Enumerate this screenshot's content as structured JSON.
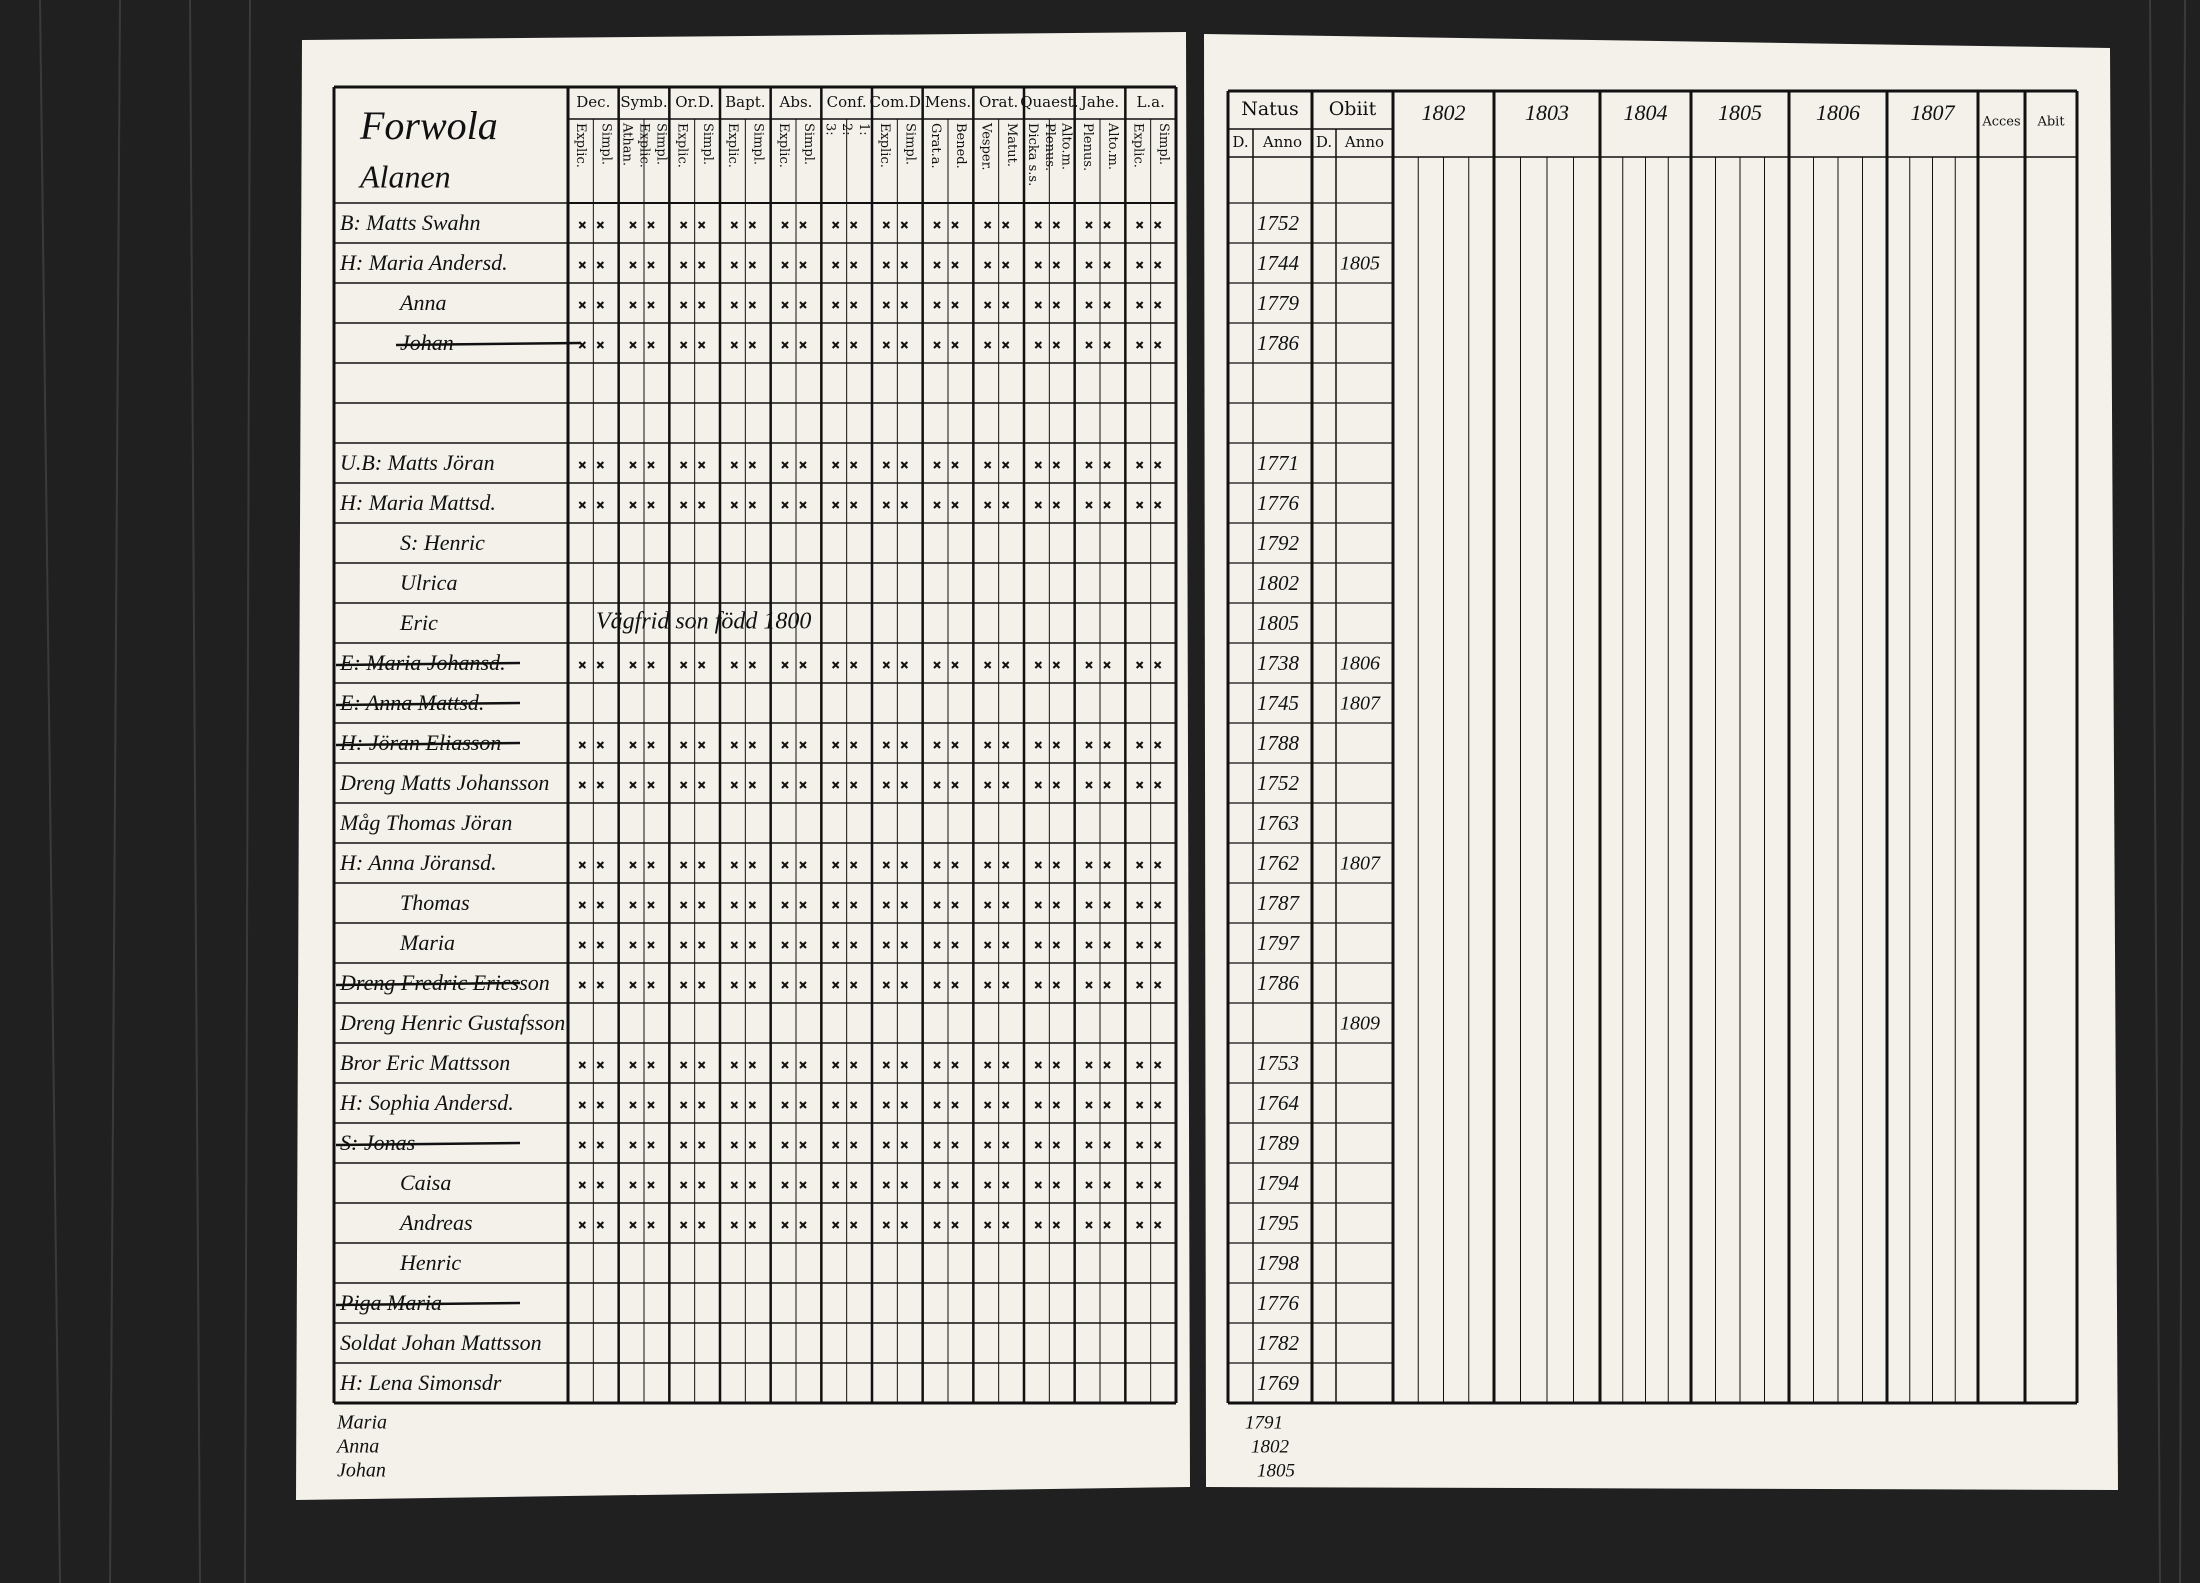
{
  "left_page": {
    "title": "Forwola",
    "subtitle": "Alanen",
    "columns": [
      {
        "label": "Dec.",
        "sub": [
          "Explic.",
          "Simpl."
        ]
      },
      {
        "label": "Symb.",
        "sub": [
          "Athan.",
          "Explic.",
          "Simpl."
        ]
      },
      {
        "label": "Or.D.",
        "sub": [
          "Explic.",
          "Simpl."
        ]
      },
      {
        "label": "Bapt.",
        "sub": [
          "Explic.",
          "Simpl."
        ]
      },
      {
        "label": "Abs.",
        "sub": [
          "Explic.",
          "Simpl."
        ]
      },
      {
        "label": "Conf.",
        "sub": [
          "3:",
          "2:",
          "1:"
        ]
      },
      {
        "label": "Com.D.",
        "sub": [
          "Explic.",
          "Simpl."
        ]
      },
      {
        "label": "Mens.",
        "sub": [
          "Grat.a.",
          "Bened."
        ]
      },
      {
        "label": "Orat.",
        "sub": [
          "Vesper.",
          "Matut."
        ]
      },
      {
        "label": "Quaest.",
        "sub": [
          "Dicka s.s.",
          "Plenus.",
          "Alto.m."
        ]
      },
      {
        "label": "Jahe.",
        "sub": [
          "Plenus.",
          "Alto.m."
        ]
      },
      {
        "label": "L.a.",
        "sub": [
          "Explic.",
          "Simpl."
        ]
      }
    ],
    "annotation": "Vägfrid son född 1800"
  },
  "right_page": {
    "natus": "Natus",
    "obiit": "Obiit",
    "day": "D.",
    "anno": "Anno",
    "years": [
      "1802",
      "1803",
      "1804",
      "1805",
      "1806",
      "1807"
    ],
    "acces": "Acces",
    "abit": "Abit"
  },
  "entries": [
    {
      "name": "B: Matts Swahn",
      "born": "1752"
    },
    {
      "name": "H: Maria Andersd.",
      "born": "1744",
      "died": "1805"
    },
    {
      "name": "Anna",
      "born": "1779"
    },
    {
      "name": "Johan",
      "born": "1786",
      "struck": true
    },
    {
      "name": "U.B: Matts Jöran",
      "born": "1771"
    },
    {
      "name": "H: Maria Mattsd.",
      "born": "1776"
    },
    {
      "name": "S: Henric",
      "born": "1792"
    },
    {
      "name": "Ulrica",
      "born": "1802"
    },
    {
      "name": "Eric",
      "born": "1805"
    },
    {
      "name": "E: Maria Johansd.",
      "born": "1738",
      "died": "1806",
      "struck": true
    },
    {
      "name": "E: Anna Mattsd.",
      "born": "1745",
      "died": "1807",
      "struck": true
    },
    {
      "name": "H: Jöran Eliasson",
      "born": "1788",
      "struck": true
    },
    {
      "name": "Dreng Matts Johansson",
      "born": "1752"
    },
    {
      "name": "Måg Thomas Jöran",
      "born": "1763"
    },
    {
      "name": "H: Anna Jöransd.",
      "born": "1762",
      "died": "1807"
    },
    {
      "name": "Thomas",
      "born": "1787"
    },
    {
      "name": "Maria",
      "born": "1797"
    },
    {
      "name": "Dreng Fredric Ericsson",
      "born": "1786",
      "struck": true
    },
    {
      "name": "Dreng Henric Gustafsson",
      "died": "1809"
    },
    {
      "name": "Bror Eric Mattsson",
      "born": "1753"
    },
    {
      "name": "H: Sophia Andersd.",
      "born": "1764"
    },
    {
      "name": "S: Jonas",
      "born": "1789",
      "struck": true
    },
    {
      "name": "Caisa",
      "born": "1794"
    },
    {
      "name": "Andreas",
      "born": "1795"
    },
    {
      "name": "Henric",
      "born": "1798"
    },
    {
      "name": "Piga Maria",
      "born": "1776",
      "struck": true
    },
    {
      "name": "Soldat Johan Mattsson",
      "born": "1782"
    },
    {
      "name": "H: Lena Simonsdr",
      "born": "1769"
    }
  ],
  "children_below": [
    {
      "name": "Maria",
      "born": "1791"
    },
    {
      "name": "Anna",
      "born": "1802"
    },
    {
      "name": "Johan",
      "born": "1805"
    }
  ]
}
